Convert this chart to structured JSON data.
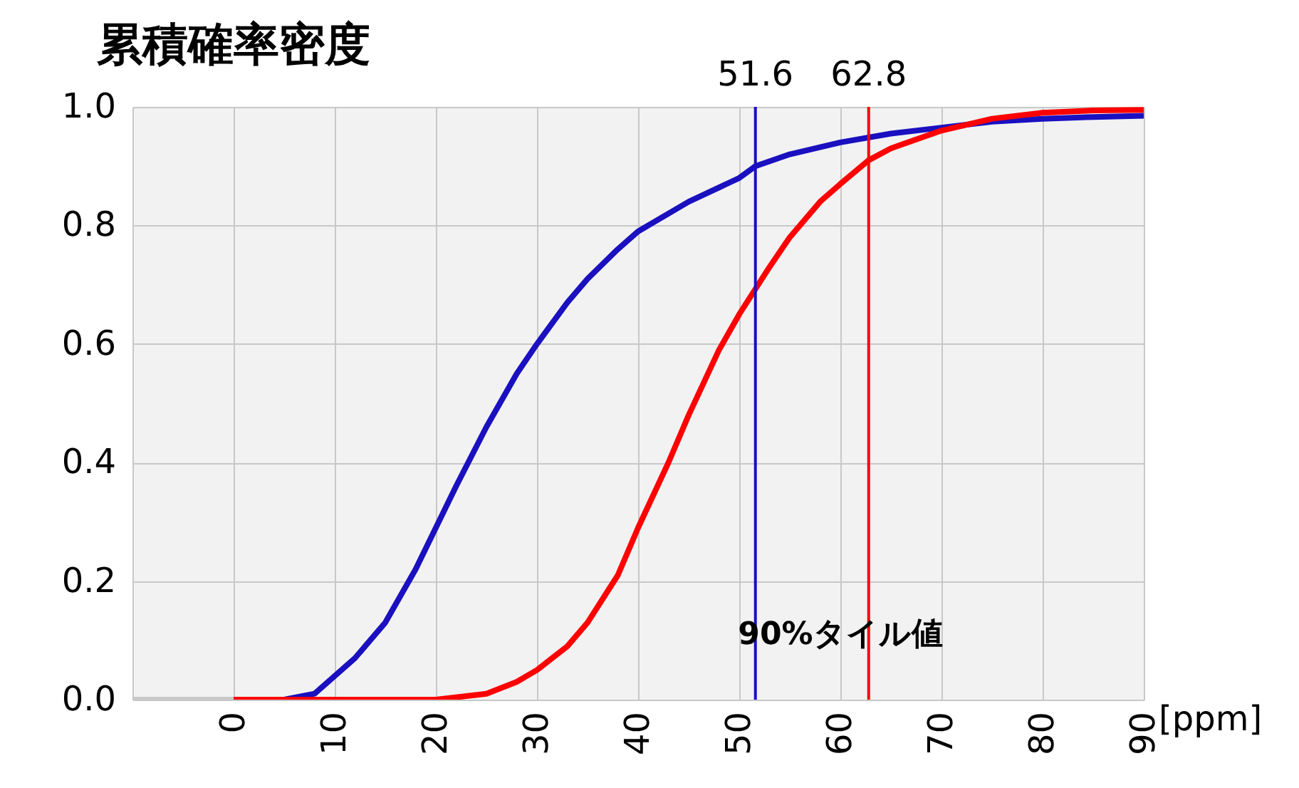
{
  "chart_data": {
    "type": "line",
    "title": "累積確率密度",
    "xlabel": "[ppm]",
    "xlim": [
      -10,
      90
    ],
    "xticks": [
      0,
      10,
      20,
      30,
      40,
      50,
      60,
      70,
      80,
      90
    ],
    "ylim": [
      0,
      1
    ],
    "yticks": [
      {
        "value": 0,
        "label": "0.0"
      },
      0.2,
      0.4,
      0.6,
      0.8,
      {
        "value": 1,
        "label": "1.0"
      }
    ],
    "grid": true,
    "legend": false,
    "marker": "none",
    "line_style": "solid",
    "series": [
      {
        "color": "#c8c8c8",
        "x": [
          -10,
          0
        ],
        "values": [
          0,
          0
        ]
      },
      {
        "color": "#1a10c0",
        "x": [
          0,
          5,
          8,
          10,
          12,
          15,
          18,
          20,
          22,
          25,
          28,
          30,
          33,
          35,
          38,
          40,
          45,
          50,
          51.6,
          55,
          60,
          65,
          70,
          75,
          80,
          85,
          90
        ],
        "values": [
          0,
          0,
          0.01,
          0.04,
          0.07,
          0.13,
          0.22,
          0.29,
          0.36,
          0.46,
          0.55,
          0.6,
          0.67,
          0.71,
          0.76,
          0.79,
          0.84,
          0.88,
          0.9,
          0.92,
          0.94,
          0.955,
          0.965,
          0.975,
          0.98,
          0.983,
          0.985
        ]
      },
      {
        "color": "#ff0000",
        "x": [
          0,
          20,
          25,
          28,
          30,
          33,
          35,
          38,
          40,
          43,
          45,
          48,
          50,
          53,
          55,
          58,
          60,
          62.8,
          65,
          70,
          75,
          80,
          85,
          90
        ],
        "values": [
          0,
          0,
          0.01,
          0.03,
          0.05,
          0.09,
          0.13,
          0.21,
          0.29,
          0.4,
          0.48,
          0.59,
          0.65,
          0.73,
          0.78,
          0.84,
          0.87,
          0.91,
          0.93,
          0.96,
          0.98,
          0.99,
          0.994,
          0.995
        ]
      }
    ],
    "ref_lines": [
      {
        "axis": "x",
        "value": 51.6,
        "label": "51.6",
        "color": "#1a10c0"
      },
      {
        "axis": "x",
        "value": 62.8,
        "label": "62.8",
        "color": "#ff0000"
      }
    ],
    "annotations": [
      "90%タイル値"
    ]
  }
}
